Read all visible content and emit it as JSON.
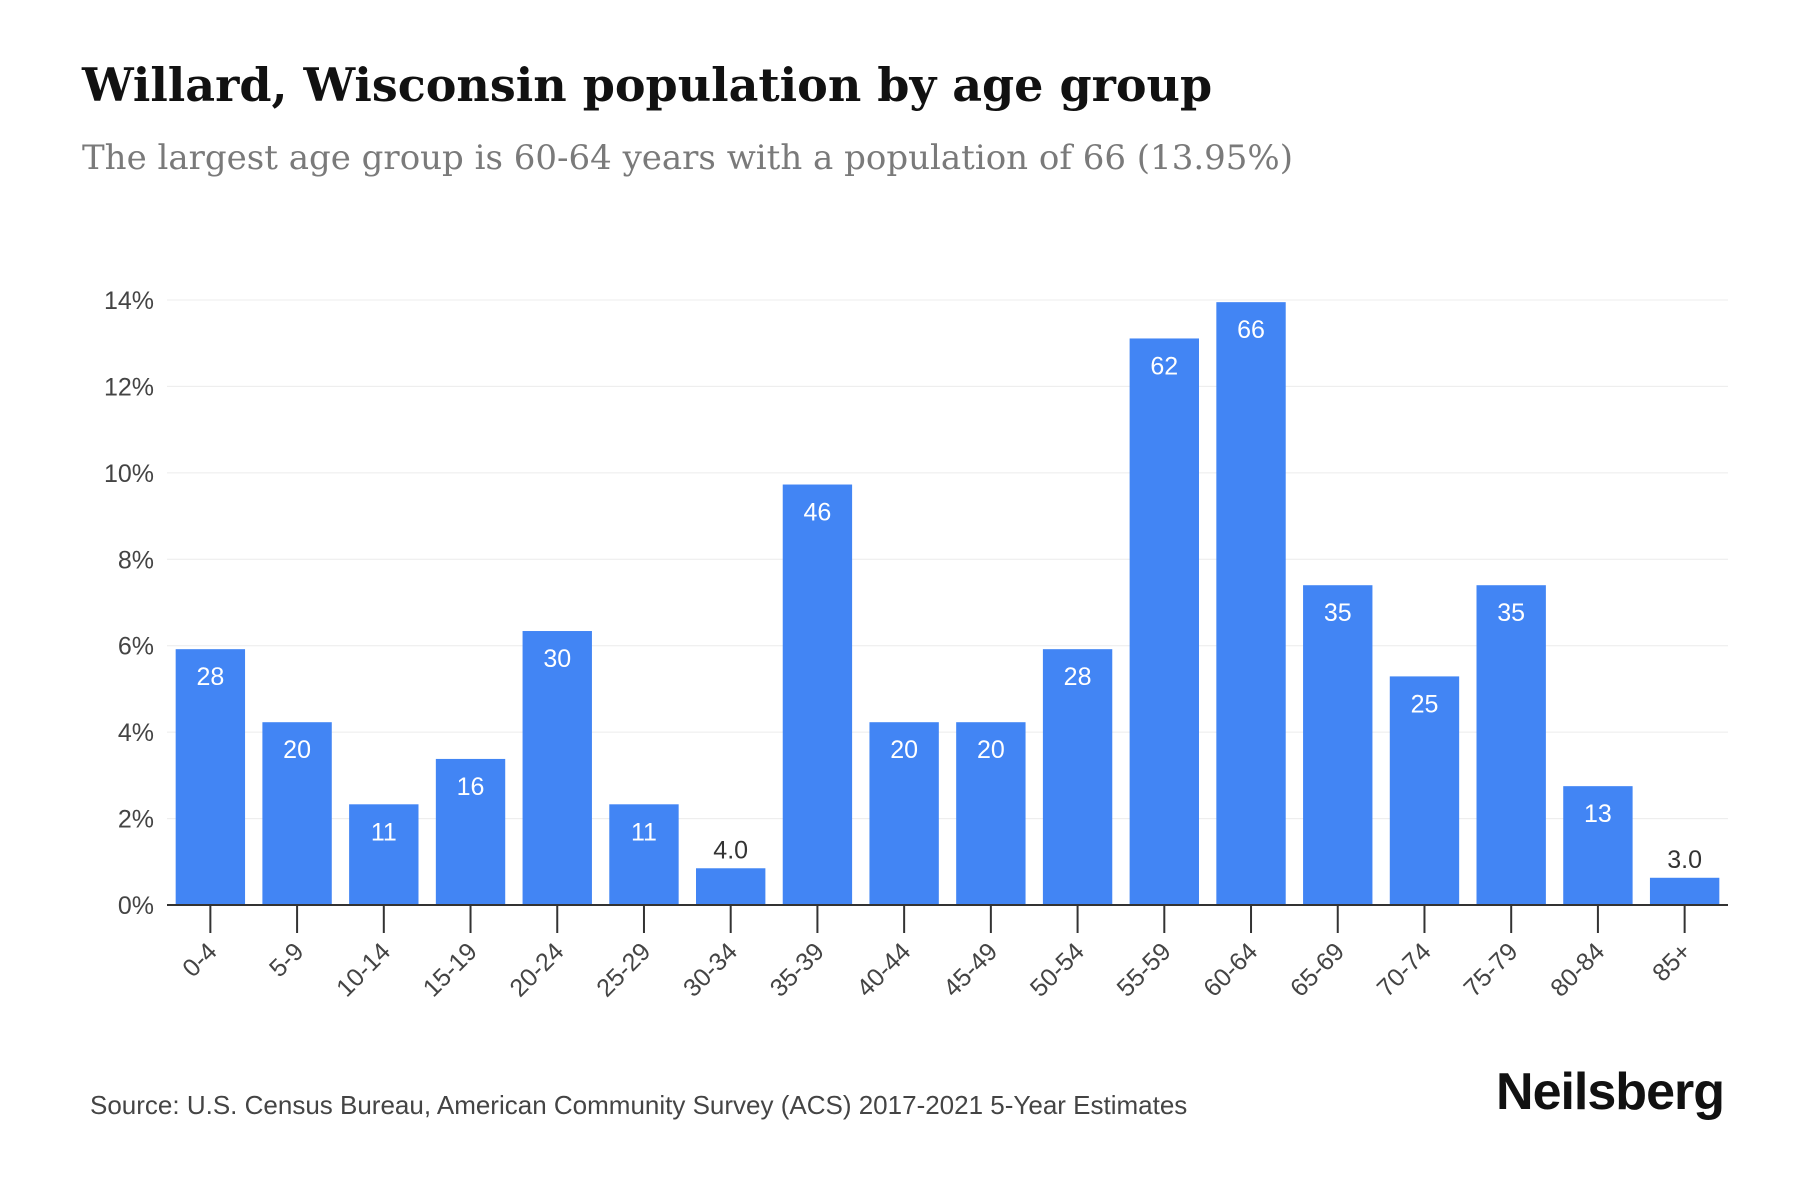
{
  "title": "Willard, Wisconsin population by age group",
  "subtitle": "The largest age group is 60-64 years with a population of 66 (13.95%)",
  "source": "Source: U.S. Census Bureau, American Community Survey (ACS) 2017-2021 5-Year Estimates",
  "brand": "Neilsberg",
  "colors": {
    "bar": "#4285f4",
    "grid": "#ececec",
    "axis": "#333333"
  },
  "chart_data": {
    "type": "bar",
    "categories": [
      "0-4",
      "5-9",
      "10-14",
      "15-19",
      "20-24",
      "25-29",
      "30-34",
      "35-39",
      "40-44",
      "45-49",
      "50-54",
      "55-59",
      "60-64",
      "65-69",
      "70-74",
      "75-79",
      "80-84",
      "85+"
    ],
    "values": [
      5.92,
      4.23,
      2.33,
      3.38,
      6.34,
      2.33,
      0.85,
      9.73,
      4.23,
      4.23,
      5.92,
      13.11,
      13.95,
      7.4,
      5.29,
      7.4,
      2.75,
      0.63
    ],
    "labels": [
      "28",
      "20",
      "11",
      "16",
      "30",
      "11",
      "4.0",
      "46",
      "20",
      "20",
      "28",
      "62",
      "66",
      "35",
      "25",
      "35",
      "13",
      "3.0"
    ],
    "ylim": [
      0,
      14
    ],
    "yticks": [
      0,
      2,
      4,
      6,
      8,
      10,
      12,
      14
    ],
    "ytick_labels": [
      "0%",
      "2%",
      "4%",
      "6%",
      "8%",
      "10%",
      "12%",
      "14%"
    ],
    "xlabel": "",
    "ylabel": "",
    "grid": true
  }
}
